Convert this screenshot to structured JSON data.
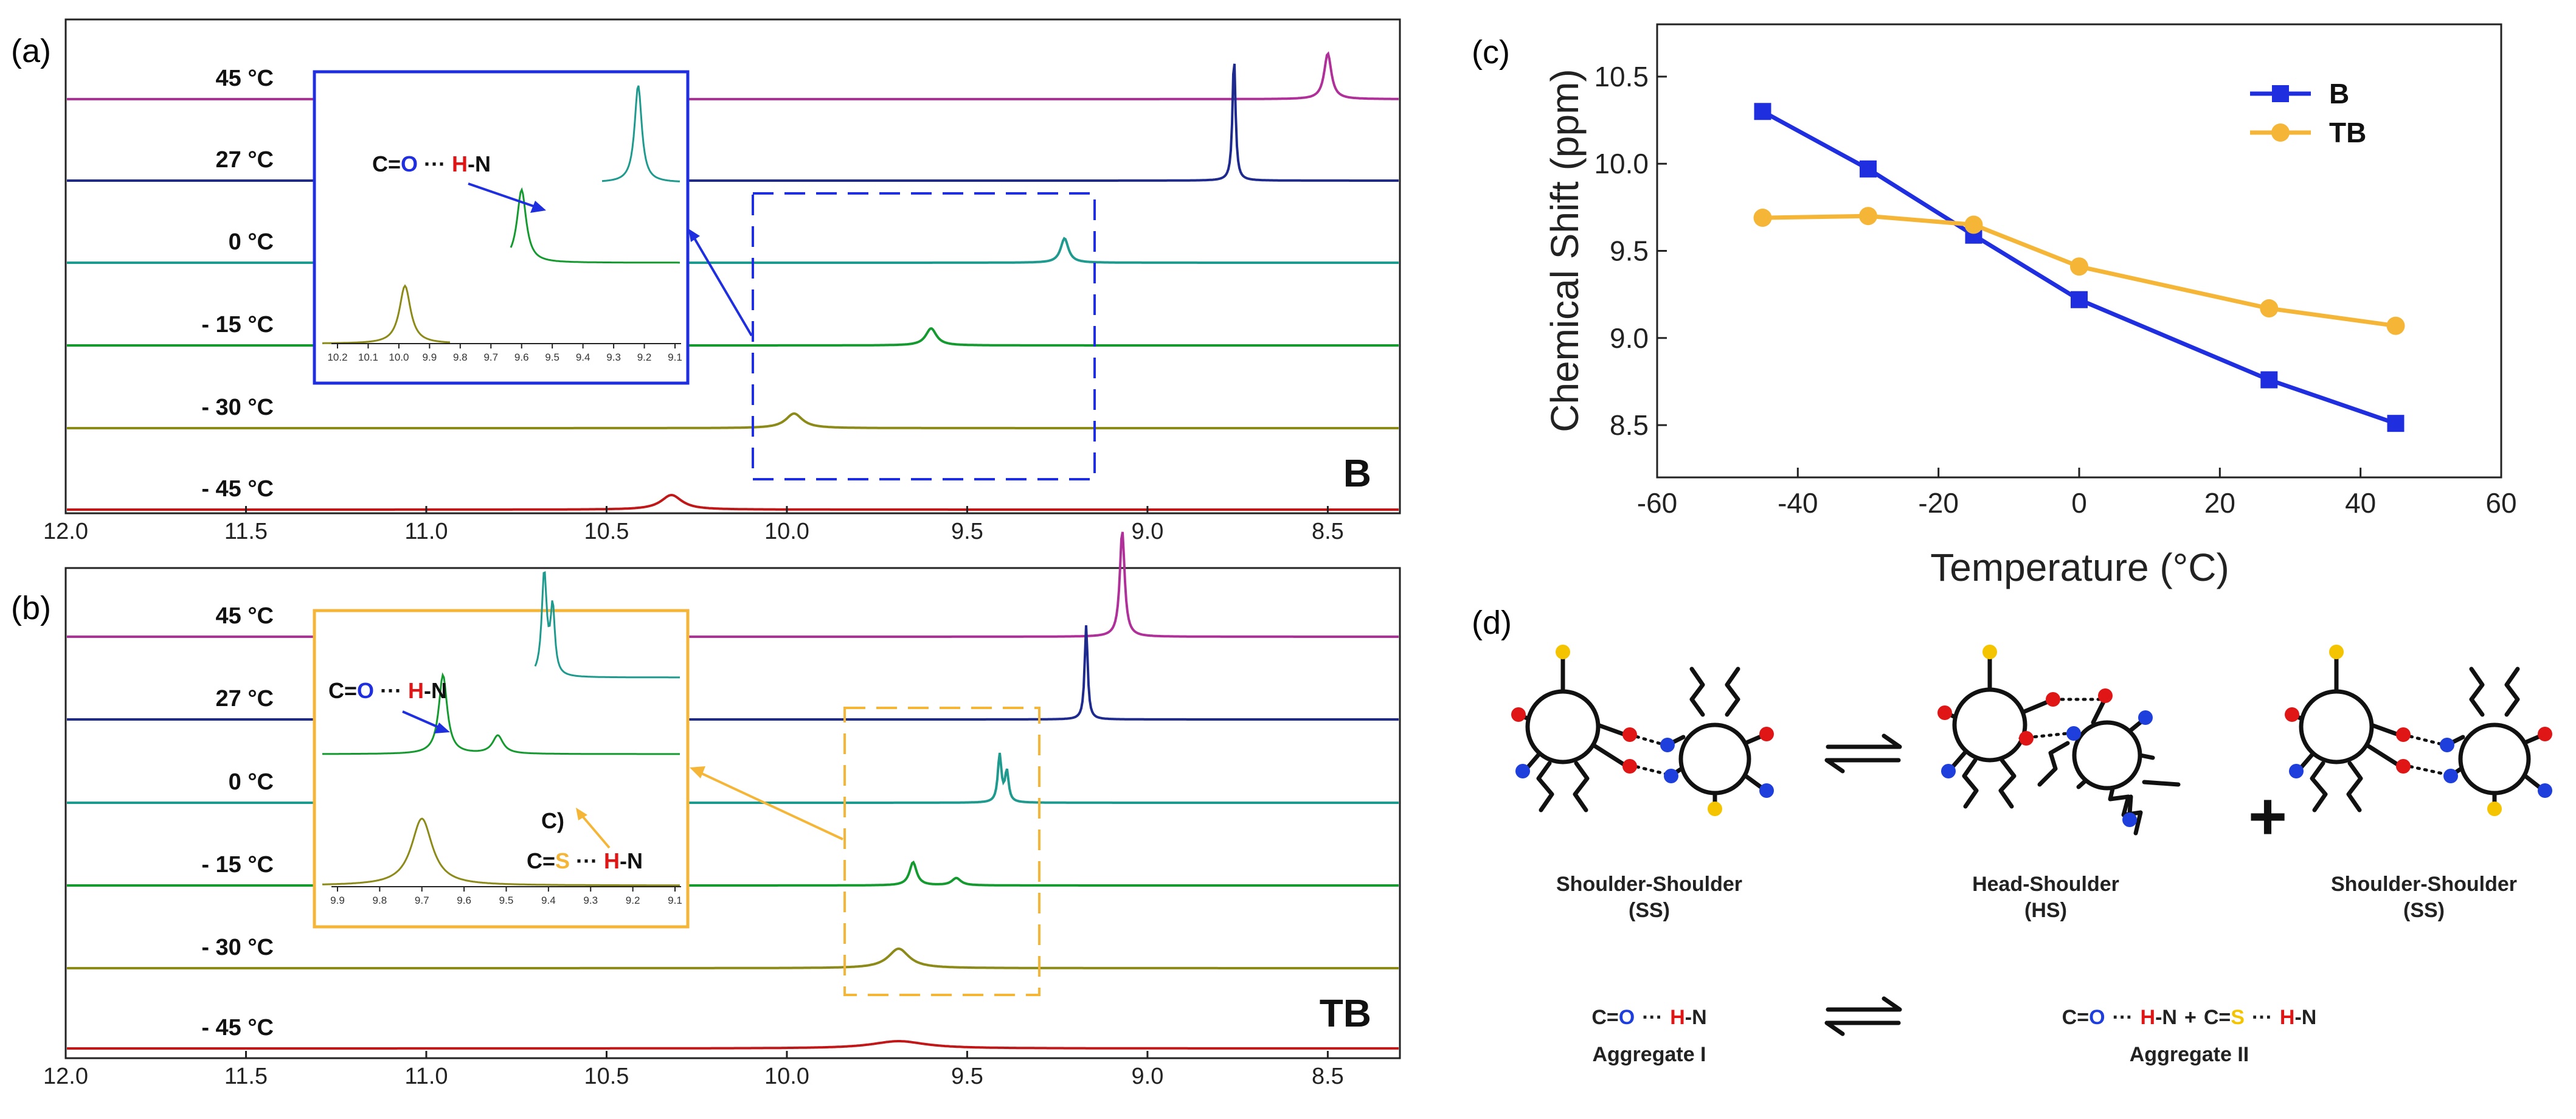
{
  "panel_labels": {
    "a": "(a)",
    "b": "(b)",
    "c": "(c)",
    "d": "(d)"
  },
  "chart_data": [
    {
      "id": "a",
      "type": "line",
      "title": "",
      "compound": "B",
      "xlabel": "",
      "x_range": [
        12.0,
        8.3
      ],
      "x_tick_labels": [
        "12.0",
        "11.5",
        "11.0",
        "10.5",
        "10.0",
        "9.5",
        "9.0",
        "8.5"
      ],
      "series": [
        {
          "name": "45 °C",
          "color": "#b0309a",
          "peaks": [
            {
              "ppm": 8.5,
              "height": 0.75,
              "width": 0.012
            }
          ]
        },
        {
          "name": "27 °C",
          "color": "#1e2a8e",
          "peaks": [
            {
              "ppm": 8.76,
              "height": 2.05,
              "width": 0.005
            }
          ]
        },
        {
          "name": "0 °C",
          "color": "#1f9a8e",
          "peaks": [
            {
              "ppm": 9.23,
              "height": 0.4,
              "width": 0.013
            }
          ]
        },
        {
          "name": "- 15 °C",
          "color": "#159a30",
          "peaks": [
            {
              "ppm": 9.6,
              "height": 0.28,
              "width": 0.018
            }
          ]
        },
        {
          "name": "- 30 °C",
          "color": "#8c8a18",
          "peaks": [
            {
              "ppm": 9.98,
              "height": 0.24,
              "width": 0.028
            }
          ]
        },
        {
          "name": "- 45 °C",
          "color": "#c01818",
          "peaks": [
            {
              "ppm": 10.32,
              "height": 0.24,
              "width": 0.035
            }
          ]
        }
      ],
      "inset": {
        "x_tick_labels": [
          "10.2",
          "10.1",
          "10.0",
          "9.9",
          "9.8",
          "9.7",
          "9.6",
          "9.5",
          "9.4",
          "9.3",
          "9.2",
          "9.1"
        ],
        "annotation": {
          "left": "C=",
          "o": "O",
          "dots": "···",
          "h": "H",
          "right": "-N"
        },
        "traces": [
          {
            "color": "#1f9a8e",
            "peak_ppm": 9.22
          },
          {
            "color": "#159a30",
            "peak_ppm": 9.6
          },
          {
            "color": "#8c8a18",
            "peak_ppm": 9.98
          }
        ]
      }
    },
    {
      "id": "b",
      "type": "line",
      "title": "",
      "compound": "TB",
      "xlabel": "",
      "x_range": [
        12.0,
        8.3
      ],
      "x_tick_labels": [
        "12.0",
        "11.5",
        "11.0",
        "10.5",
        "10.0",
        "9.5",
        "9.0",
        "8.5"
      ],
      "series": [
        {
          "name": "45 °C",
          "color": "#b0309a",
          "peaks": [
            {
              "ppm": 9.07,
              "height": 1.75,
              "width": 0.008
            }
          ]
        },
        {
          "name": "27 °C",
          "color": "#1e2a8e",
          "peaks": [
            {
              "ppm": 9.17,
              "height": 1.55,
              "width": 0.005
            }
          ]
        },
        {
          "name": "0 °C",
          "color": "#1f9a8e",
          "peaks": [
            {
              "ppm": 9.41,
              "height": 0.78,
              "width": 0.006
            },
            {
              "ppm": 9.39,
              "height": 0.5,
              "width": 0.006
            }
          ]
        },
        {
          "name": "- 15 °C",
          "color": "#159a30",
          "peaks": [
            {
              "ppm": 9.65,
              "height": 0.38,
              "width": 0.012
            },
            {
              "ppm": 9.53,
              "height": 0.12,
              "width": 0.015
            }
          ]
        },
        {
          "name": "- 30 °C",
          "color": "#8c8a18",
          "peaks": [
            {
              "ppm": 9.69,
              "height": 0.32,
              "width": 0.035
            }
          ]
        },
        {
          "name": "- 45 °C",
          "color": "#c01818",
          "peaks": [
            {
              "ppm": 9.69,
              "height": 0.12,
              "width": 0.09
            }
          ]
        }
      ],
      "inset": {
        "x_tick_labels": [
          "9.9",
          "9.8",
          "9.7",
          "9.6",
          "9.5",
          "9.4",
          "9.3",
          "9.2",
          "9.1"
        ],
        "annotation_co": {
          "left": "C=",
          "o": "O",
          "dots": "···",
          "h": "H",
          "right": "-N"
        },
        "annotation_cs": {
          "left": "C=",
          "s": "S",
          "dots": "···",
          "h": "H",
          "right": "-N"
        },
        "stray_label": "C)",
        "traces": [
          {
            "color": "#1f9a8e",
            "peak_ppm": 9.41
          },
          {
            "color": "#159a30",
            "peak_ppm": 9.65
          },
          {
            "color": "#8c8a18",
            "peak_ppm": 9.7
          }
        ]
      }
    },
    {
      "id": "c",
      "type": "line",
      "title": "",
      "xlabel": "Temperature (°C)",
      "ylabel": "Chemical Shift (ppm)",
      "xlim": [
        -60,
        60
      ],
      "ylim": [
        8.2,
        10.8
      ],
      "x_ticks": [
        "-60",
        "-40",
        "-20",
        "0",
        "20",
        "40",
        "60"
      ],
      "y_ticks": [
        "8.5",
        "9.0",
        "9.5",
        "10.0",
        "10.5"
      ],
      "legend_position": "top-right",
      "series": [
        {
          "name": "B",
          "color": "#1f2fe0",
          "marker": "square",
          "x": [
            -45,
            -30,
            -15,
            0,
            27,
            45
          ],
          "y": [
            10.3,
            9.97,
            9.59,
            9.22,
            8.76,
            8.51
          ]
        },
        {
          "name": "TB",
          "color": "#f5b638",
          "marker": "circle",
          "x": [
            -45,
            -30,
            -15,
            0,
            27,
            45
          ],
          "y": [
            9.69,
            9.7,
            9.65,
            9.41,
            9.17,
            9.07
          ]
        }
      ]
    }
  ],
  "diagram": {
    "captions": {
      "ss_left": {
        "line1": "Shoulder-Shoulder",
        "line2": "(SS)"
      },
      "hs": {
        "line1": "Head-Shoulder",
        "line2": "(HS)"
      },
      "ss_right": {
        "line1": "Shoulder-Shoulder",
        "line2": "(SS)"
      }
    },
    "plus": "+",
    "aggregate1": {
      "c": "C=",
      "o": "O",
      "dots": "···",
      "h": "H",
      "n": "-N",
      "name": "Aggregate I"
    },
    "aggregate2": {
      "c1": "C=",
      "o": "O",
      "dots1": "···",
      "h1": "H",
      "n1": "-N",
      "plus": "+",
      "c2": "C=",
      "s": "S",
      "dots2": "···",
      "h2": "H",
      "n2": "-N",
      "name": "Aggregate II"
    },
    "colors": {
      "blue": "#1f3fdc",
      "red": "#e01616",
      "yellow": "#f5c400"
    }
  }
}
